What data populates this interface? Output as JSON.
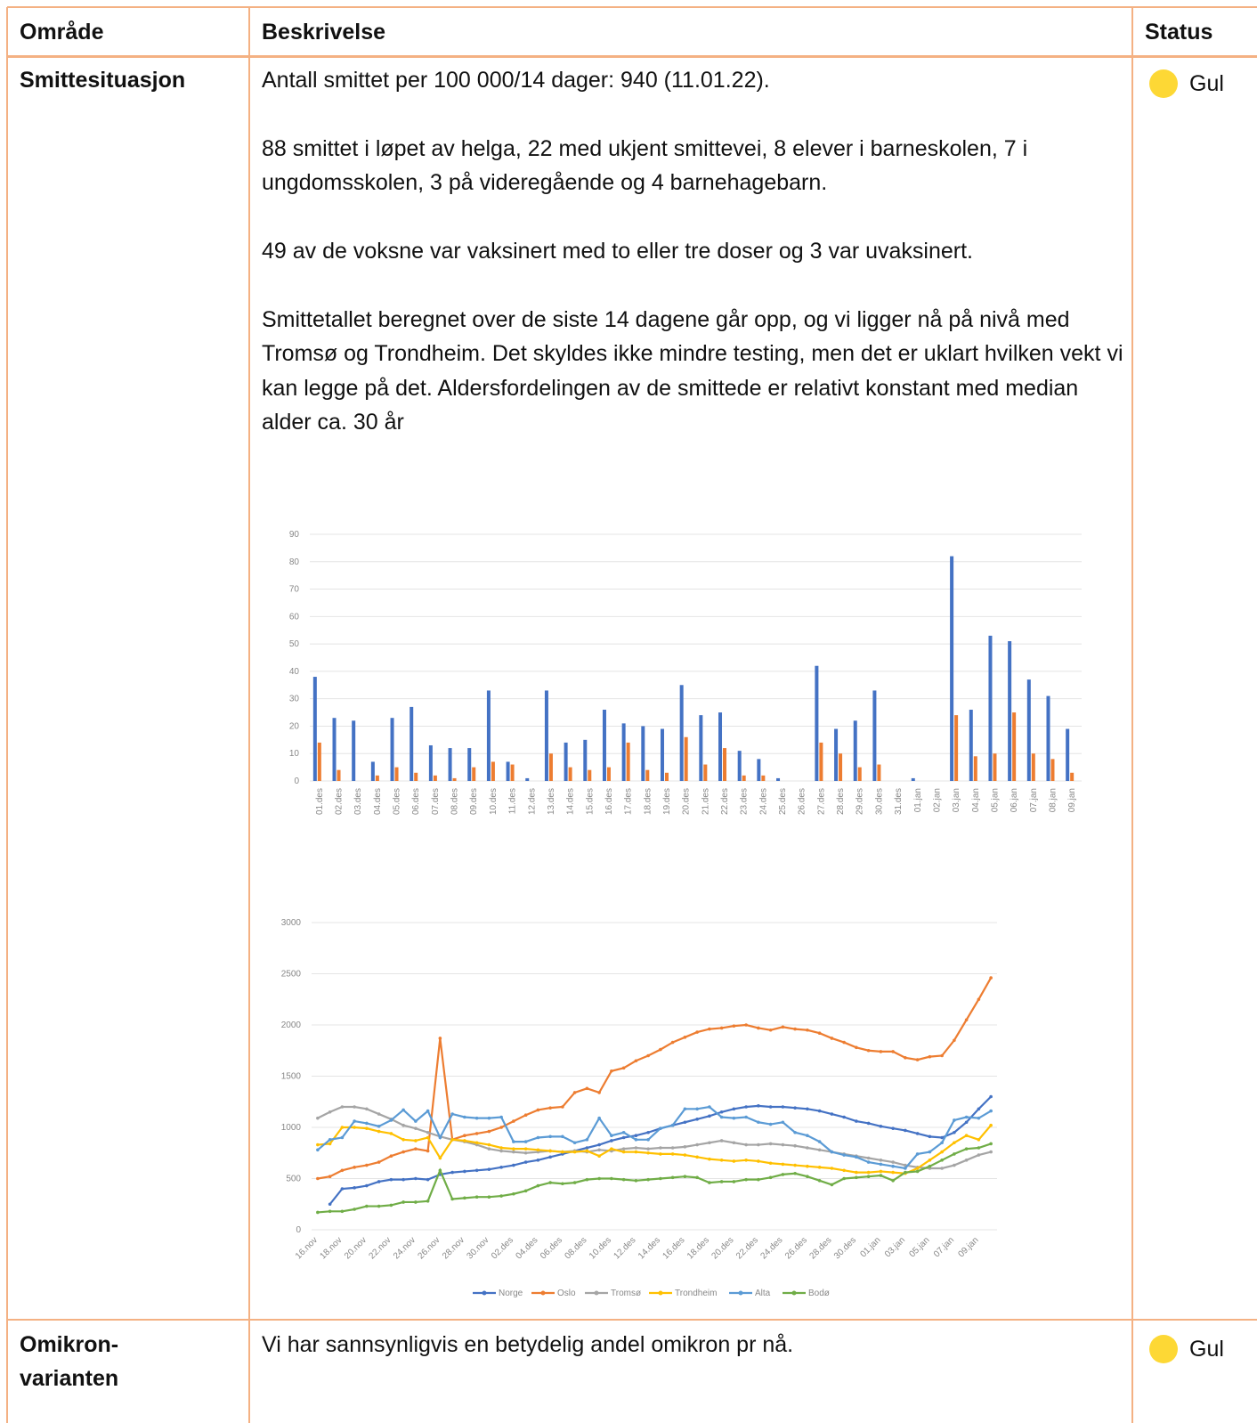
{
  "table": {
    "header": [
      "Område",
      "Beskrivelse",
      "Status"
    ],
    "rows": [
      {
        "area": "Smittesituasjon",
        "description": [
          "Antall smittet per 100 000/14 dager: 940 (11.01.22).",
          "88 smittet i løpet av helga, 22 med ukjent smittevei, 8 elever i barneskolen, 7 i ungdomsskolen, 3 på videregående og 4 barnehagebarn.",
          "49 av de voksne var vaksinert med to eller tre doser og 3 var uvaksinert.",
          "Smittetallet beregnet over de siste 14 dagene går opp, og vi ligger nå på nivå med Tromsø og Trondheim. Det skyldes ikke mindre testing, men det er uklart hvilken vekt vi kan legge på det. Aldersfordelingen av de smittede er relativt konstant med median alder ca. 30 år"
        ],
        "status": "Gul"
      },
      {
        "area": "Omikron-varianten",
        "description": [
          "Vi har sannsynligvis en betydelig andel omikron pr nå."
        ],
        "status": "Gul"
      }
    ]
  },
  "chart_data": [
    {
      "type": "bar",
      "categories": [
        "01.des",
        "02.des",
        "03.des",
        "04.des",
        "05.des",
        "06.des",
        "07.des",
        "08.des",
        "09.des",
        "10.des",
        "11.des",
        "12.des",
        "13.des",
        "14.des",
        "15.des",
        "16.des",
        "17.des",
        "18.des",
        "19.des",
        "20.des",
        "21.des",
        "22.des",
        "23.des",
        "24.des",
        "25.des",
        "26.des",
        "27.des",
        "28.des",
        "29.des",
        "30.des",
        "31.des",
        "01.jan",
        "02.jan",
        "03.jan",
        "04.jan",
        "05.jan",
        "06.jan",
        "07.jan",
        "08.jan",
        "09.jan"
      ],
      "series": [
        {
          "color": "#4472c4",
          "values": [
            38,
            23,
            22,
            7,
            23,
            27,
            13,
            12,
            12,
            33,
            7,
            1,
            33,
            14,
            15,
            26,
            21,
            20,
            19,
            35,
            24,
            25,
            11,
            8,
            1,
            0,
            42,
            19,
            22,
            33,
            0,
            1,
            0,
            82,
            26,
            53,
            51,
            37,
            31,
            19
          ]
        },
        {
          "color": "#ed7d31",
          "values": [
            14,
            4,
            0,
            2,
            5,
            3,
            2,
            1,
            5,
            7,
            6,
            0,
            10,
            5,
            4,
            5,
            14,
            4,
            3,
            16,
            6,
            12,
            2,
            2,
            0,
            0,
            14,
            10,
            5,
            6,
            0,
            0,
            0,
            24,
            9,
            10,
            25,
            10,
            8,
            3
          ]
        }
      ],
      "ylim": [
        0,
        90
      ],
      "yticks": [
        0,
        10,
        20,
        30,
        40,
        50,
        60,
        70,
        80,
        90
      ],
      "grid": true
    },
    {
      "type": "line",
      "categories": [
        "16.nov",
        null,
        "18.nov",
        null,
        "20.nov",
        null,
        "22.nov",
        null,
        "24.nov",
        null,
        "26.nov",
        null,
        "28.nov",
        null,
        "30.nov",
        null,
        "02.des",
        null,
        "04.des",
        null,
        "06.des",
        null,
        "08.des",
        null,
        "10.des",
        null,
        "12.des",
        null,
        "14.des",
        null,
        "16.des",
        null,
        "18.des",
        null,
        "20.des",
        null,
        "22.des",
        null,
        "24.des",
        null,
        "26.des",
        null,
        "28.des",
        null,
        "30.des",
        null,
        "01.jan",
        null,
        "03.jan",
        null,
        "05.jan",
        null,
        "07.jan",
        null,
        "09.jan",
        null
      ],
      "series": [
        {
          "name": "Norge",
          "color": "#4472c4",
          "values": [
            null,
            250,
            400,
            410,
            430,
            470,
            490,
            490,
            500,
            490,
            540,
            560,
            570,
            580,
            590,
            610,
            630,
            660,
            680,
            710,
            740,
            770,
            800,
            830,
            870,
            900,
            920,
            950,
            990,
            1020,
            1050,
            1080,
            1110,
            1150,
            1180,
            1200,
            1210,
            1200,
            1200,
            1190,
            1180,
            1160,
            1130,
            1100,
            1060,
            1040,
            1010,
            990,
            970,
            940,
            910,
            900,
            950,
            1050,
            1180,
            1300
          ]
        },
        {
          "name": "Oslo",
          "color": "#ed7d31",
          "values": [
            500,
            520,
            580,
            610,
            630,
            660,
            720,
            760,
            790,
            770,
            1870,
            880,
            920,
            940,
            960,
            1000,
            1060,
            1120,
            1170,
            1190,
            1200,
            1340,
            1380,
            1340,
            1550,
            1580,
            1650,
            1700,
            1760,
            1830,
            1880,
            1930,
            1960,
            1970,
            1990,
            2000,
            1970,
            1950,
            1980,
            1960,
            1950,
            1920,
            1870,
            1830,
            1780,
            1750,
            1740,
            1740,
            1680,
            1660,
            1690,
            1700,
            1850,
            2050,
            2250,
            2460
          ]
        },
        {
          "name": "Tromsø",
          "color": "#a5a5a5",
          "values": [
            1090,
            1150,
            1200,
            1200,
            1180,
            1130,
            1080,
            1020,
            990,
            950,
            910,
            880,
            860,
            830,
            790,
            770,
            760,
            750,
            760,
            770,
            760,
            770,
            760,
            780,
            770,
            790,
            800,
            790,
            800,
            800,
            810,
            830,
            850,
            870,
            850,
            830,
            830,
            840,
            830,
            820,
            800,
            780,
            760,
            740,
            720,
            700,
            680,
            660,
            630,
            610,
            600,
            600,
            630,
            680,
            730,
            760
          ]
        },
        {
          "name": "Trondheim",
          "color": "#ffc000",
          "values": [
            830,
            840,
            1000,
            1000,
            990,
            960,
            940,
            880,
            870,
            900,
            700,
            880,
            870,
            850,
            830,
            800,
            790,
            790,
            780,
            770,
            760,
            760,
            770,
            720,
            790,
            760,
            760,
            750,
            740,
            740,
            730,
            710,
            690,
            680,
            670,
            680,
            670,
            650,
            640,
            630,
            620,
            610,
            600,
            580,
            560,
            560,
            570,
            560,
            550,
            600,
            680,
            760,
            850,
            920,
            880,
            1020
          ]
        },
        {
          "name": "Alta",
          "color": "#5b9bd5",
          "values": [
            780,
            880,
            900,
            1060,
            1040,
            1010,
            1070,
            1170,
            1060,
            1160,
            900,
            1130,
            1100,
            1090,
            1090,
            1100,
            860,
            860,
            900,
            910,
            910,
            850,
            880,
            1090,
            920,
            950,
            880,
            880,
            990,
            1020,
            1180,
            1180,
            1200,
            1100,
            1090,
            1100,
            1050,
            1030,
            1050,
            950,
            920,
            860,
            760,
            730,
            710,
            660,
            640,
            620,
            600,
            740,
            760,
            850,
            1070,
            1100,
            1090,
            1160
          ]
        },
        {
          "name": "Bodø",
          "color": "#70ad47",
          "values": [
            170,
            180,
            180,
            200,
            230,
            230,
            240,
            270,
            270,
            280,
            580,
            300,
            310,
            320,
            320,
            330,
            350,
            380,
            430,
            460,
            450,
            460,
            490,
            500,
            500,
            490,
            480,
            490,
            500,
            510,
            520,
            510,
            460,
            470,
            470,
            490,
            490,
            510,
            540,
            550,
            520,
            480,
            440,
            500,
            510,
            520,
            530,
            480,
            560,
            570,
            620,
            680,
            740,
            790,
            800,
            840
          ]
        }
      ],
      "ylim": [
        0,
        3000
      ],
      "yticks": [
        0,
        500,
        1000,
        1500,
        2000,
        2500,
        3000
      ],
      "grid": true,
      "legend": "bottom"
    }
  ]
}
